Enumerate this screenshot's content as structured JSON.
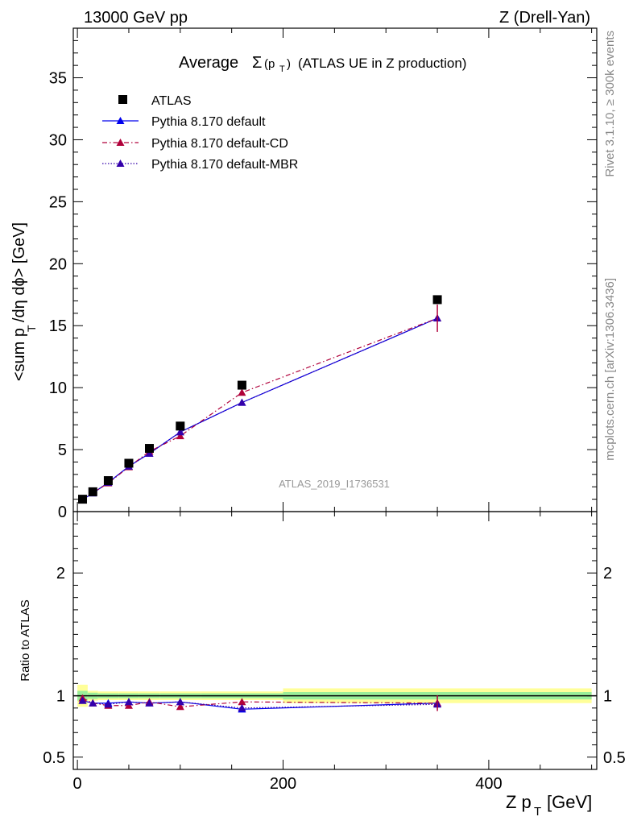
{
  "header": {
    "left": "13000 GeV pp",
    "right": "Z (Drell-Yan)"
  },
  "side_labels": {
    "rivet": "Rivet 3.1.10, ≥ 300k events",
    "mcplots": "mcplots.cern.ch [arXiv:1306.3436]"
  },
  "chart_data": {
    "type": "line",
    "title_prefix": "Average",
    "title_sigma": "Σ",
    "title_arg": "(p",
    "title_arg_sub": "T",
    "title_arg_close": ")",
    "title_suffix": "(ATLAS UE in Z production)",
    "analysis_tag": "ATLAS_2019_I1736531",
    "xlabel": "Z p",
    "xlabel_sub": "T",
    "xlabel_unit": "[GeV]",
    "ylabel_main": "<sum p",
    "ylabel_main_sub": "T",
    "ylabel_main_rest": "/dη dϕ> [GeV]",
    "ylabel_ratio": "Ratio to ATLAS",
    "x": [
      5,
      15,
      30,
      50,
      70,
      100,
      160,
      350
    ],
    "xlim": [
      -4,
      505
    ],
    "main_ylim": [
      0,
      39
    ],
    "main_yticks": [
      0,
      5,
      10,
      15,
      20,
      25,
      30,
      35
    ],
    "ratio_ylim": [
      0.4,
      2.5
    ],
    "ratio_yticks": [
      0.5,
      1,
      2
    ],
    "ratio_yticklabels": [
      "0.5",
      "1",
      "2"
    ],
    "xticks": [
      0,
      200,
      400
    ],
    "data": {
      "name": "ATLAS",
      "color": "#000000",
      "values": [
        1.0,
        1.6,
        2.5,
        3.9,
        5.1,
        6.9,
        10.2,
        17.1
      ],
      "band_x": [
        [
          0,
          10
        ],
        [
          10,
          20
        ],
        [
          20,
          40
        ],
        [
          40,
          60
        ],
        [
          60,
          80
        ],
        [
          80,
          120
        ],
        [
          120,
          200
        ],
        [
          200,
          500
        ]
      ],
      "band_inner": [
        0.04,
        0.025,
        0.02,
        0.02,
        0.02,
        0.02,
        0.02,
        0.03
      ],
      "band_outer": [
        0.09,
        0.04,
        0.035,
        0.035,
        0.035,
        0.035,
        0.035,
        0.06
      ]
    },
    "series": [
      {
        "name": "Pythia 8.170 default",
        "color": "#0000ee",
        "style": "solid",
        "values": [
          0.96,
          1.49,
          2.34,
          3.65,
          4.69,
          6.42,
          8.8,
          15.6
        ],
        "ratio": [
          0.96,
          0.94,
          0.94,
          0.95,
          0.94,
          0.95,
          0.89,
          0.94
        ]
      },
      {
        "name": "Pythia 8.170 default-CD",
        "color": "#b0003a",
        "style": "dashdot",
        "values": [
          0.98,
          1.5,
          2.3,
          3.6,
          4.85,
          6.1,
          9.6,
          15.6
        ],
        "ratio": [
          0.98,
          0.94,
          0.92,
          0.92,
          0.95,
          0.91,
          0.95,
          0.94
        ]
      },
      {
        "name": "Pythia 8.170 default-MBR",
        "color": "#3300aa",
        "style": "dotted",
        "values": [
          0.96,
          1.49,
          2.34,
          3.65,
          4.69,
          6.42,
          8.8,
          15.6
        ],
        "ratio": [
          0.96,
          0.94,
          0.93,
          0.95,
          0.94,
          0.95,
          0.9,
          0.93
        ]
      }
    ],
    "last_point_error": 1.1
  }
}
